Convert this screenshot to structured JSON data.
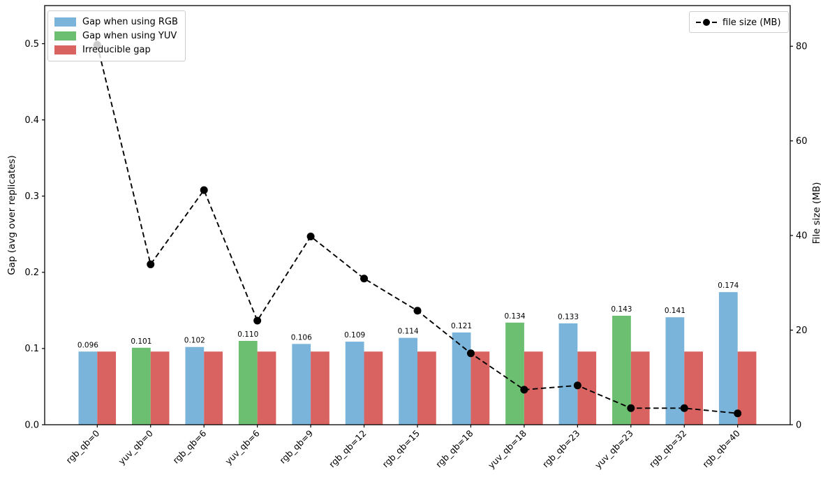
{
  "chart_data": {
    "type": "bar",
    "title": "",
    "grid": false,
    "categories": [
      "rgb_qb=0",
      "yuv_qb=0",
      "rgb_qb=6",
      "yuv_qb=6",
      "rgb_qb=9",
      "rgb_qb=12",
      "rgb_qb=15",
      "rgb_qb=18",
      "yuv_qb=18",
      "rgb_qb=23",
      "yuv_qb=23",
      "rgb_qb=32",
      "rgb_qb=40"
    ],
    "gap_bars": {
      "series_per_category": [
        "RGB",
        "YUV",
        "RGB",
        "YUV",
        "RGB",
        "RGB",
        "RGB",
        "RGB",
        "YUV",
        "RGB",
        "YUV",
        "RGB",
        "RGB"
      ],
      "values": [
        0.096,
        0.101,
        0.102,
        0.11,
        0.106,
        0.109,
        0.114,
        0.121,
        0.134,
        0.133,
        0.143,
        0.141,
        0.174
      ],
      "value_labels": [
        "0.096",
        "0.101",
        "0.102",
        "0.110",
        "0.106",
        "0.109",
        "0.114",
        "0.121",
        "0.134",
        "0.133",
        "0.143",
        "0.141",
        "0.174"
      ]
    },
    "irreducible_bars": {
      "values": [
        0.096,
        0.096,
        0.096,
        0.096,
        0.096,
        0.096,
        0.096,
        0.096,
        0.096,
        0.096,
        0.096,
        0.096,
        0.096
      ]
    },
    "file_size_line": {
      "name": "file size (MB)",
      "values_mb": [
        80.3,
        33.9,
        49.6,
        22.0,
        39.8,
        30.9,
        24.1,
        15.1,
        7.4,
        8.3,
        3.5,
        3.5,
        2.4
      ]
    },
    "left_axis": {
      "label": "Gap (avg over replicates)",
      "tick_labels": [
        "0.0",
        "0.1",
        "0.2",
        "0.3",
        "0.4",
        "0.5"
      ],
      "tick_values": [
        0,
        0.1,
        0.2,
        0.3,
        0.4,
        0.5
      ],
      "ylim": [
        0,
        0.55
      ]
    },
    "right_axis": {
      "label": "File size (MB)",
      "tick_labels": [
        "0",
        "20",
        "40",
        "60",
        "80"
      ],
      "tick_values": [
        0,
        20,
        40,
        60,
        80
      ],
      "ylim": [
        0,
        88.6
      ]
    },
    "legend": [
      {
        "label": "Gap when using RGB",
        "color": "#7ab4da",
        "series": "RGB"
      },
      {
        "label": "Gap when using YUV",
        "color": "#6cbe70",
        "series": "YUV"
      },
      {
        "label": "Irreducible gap",
        "color": "#d96361",
        "series": "IRREDUCIBLE"
      }
    ],
    "legend_right": [
      {
        "label": "file size (MB)",
        "color": "#000000",
        "line_style": "dashed",
        "marker": "circle"
      }
    ],
    "colors": {
      "rgb_bar": "#7ab4da",
      "yuv_bar": "#6cbe70",
      "irreducible_bar": "#d96361",
      "line": "#000000",
      "axis": "#000000",
      "legend_border": "#cccccc"
    },
    "legend_position": {
      "gaps": "upper left",
      "file_size": "upper right"
    }
  }
}
